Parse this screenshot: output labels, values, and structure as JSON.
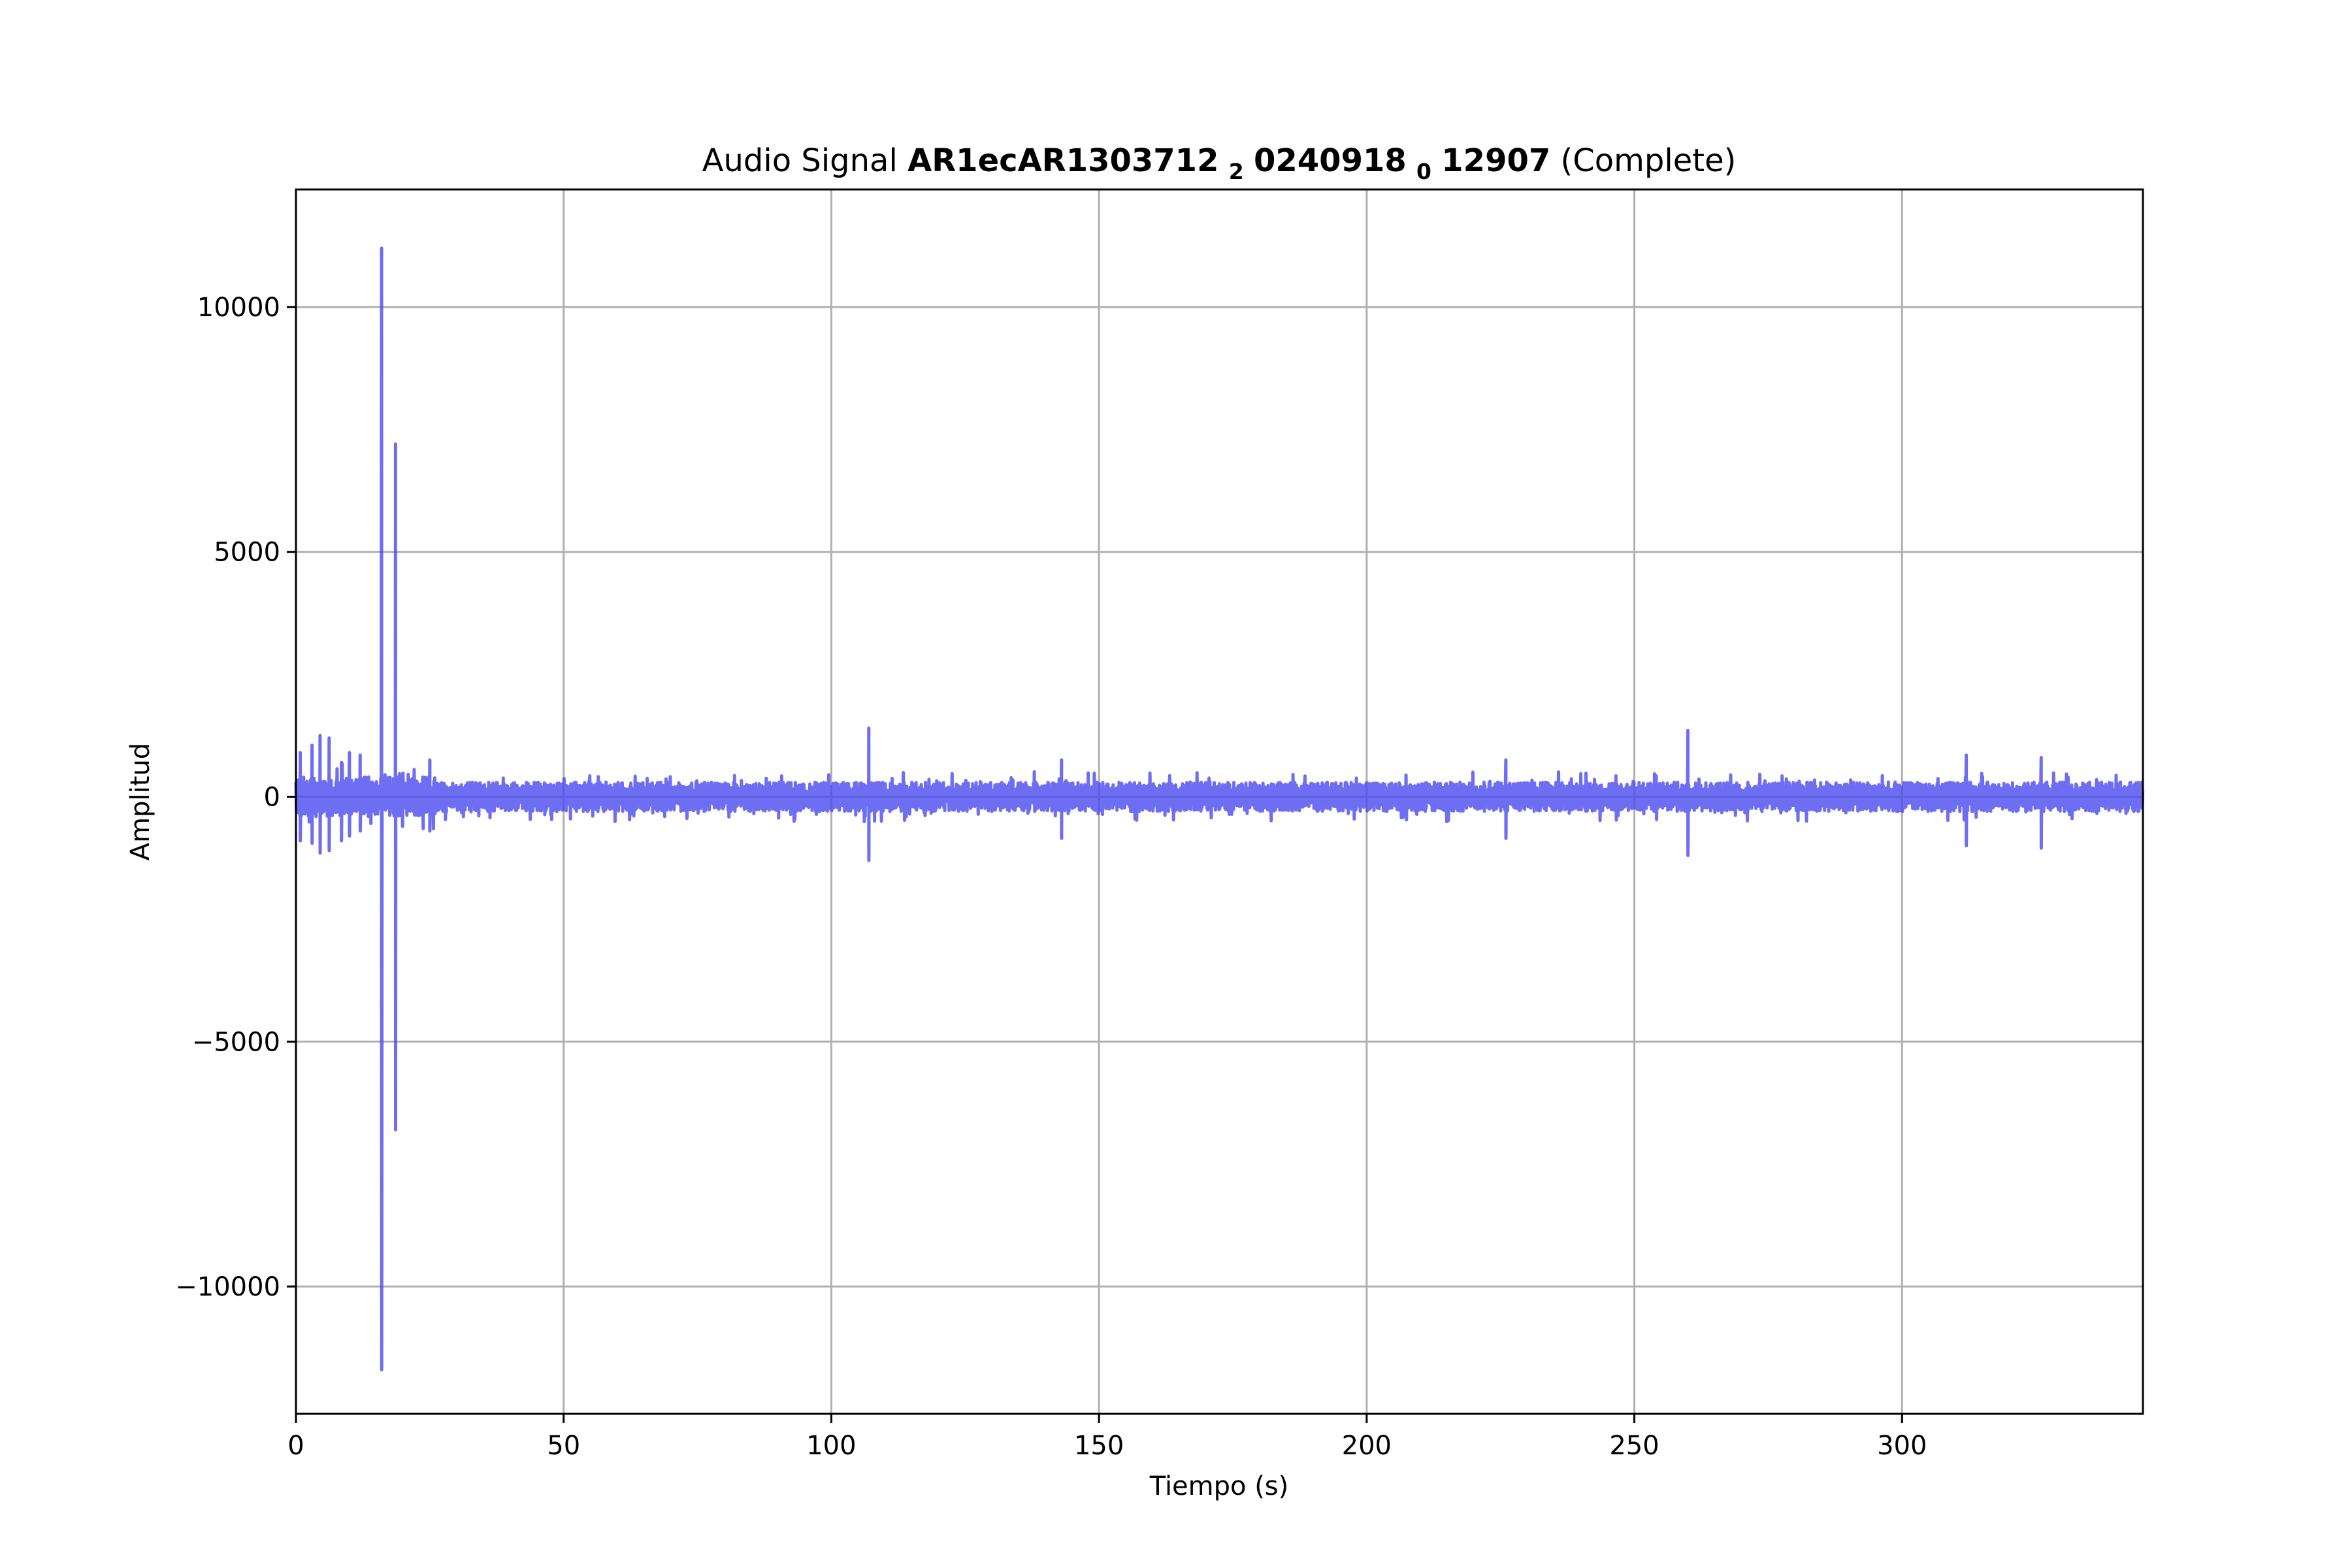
{
  "chart_data": {
    "type": "line",
    "title": {
      "prefix": "Audio Signal ",
      "name_part1": "AR1ecAR1303712",
      "sub1": "2",
      "name_part2": "0240918",
      "sub2": "0",
      "name_part3": "12907",
      "suffix": " (Complete)"
    },
    "xlabel": "Tiempo (s)",
    "ylabel": "Amplitud",
    "xlim": [
      0,
      345
    ],
    "ylim": [
      -12600,
      12400
    ],
    "xticks": [
      0,
      50,
      100,
      150,
      200,
      250,
      300
    ],
    "yticks": [
      -10000,
      -5000,
      0,
      5000,
      10000
    ],
    "xtick_labels": [
      "0",
      "50",
      "100",
      "150",
      "200",
      "250",
      "300"
    ],
    "ytick_labels": [
      "−10000",
      "−5000",
      "0",
      "5000",
      "10000"
    ],
    "grid": true,
    "series": [
      {
        "color": "#4a4af0",
        "baseline_amplitude": 300,
        "spikes": [
          {
            "t": 0.8,
            "max": 900,
            "min": -900
          },
          {
            "t": 3.0,
            "max": 1050,
            "min": -950
          },
          {
            "t": 4.5,
            "max": 1250,
            "min": -1150
          },
          {
            "t": 6.2,
            "max": 1200,
            "min": -1100
          },
          {
            "t": 8.5,
            "max": 700,
            "min": -900
          },
          {
            "t": 10.0,
            "max": 900,
            "min": -800
          },
          {
            "t": 12.0,
            "max": 850,
            "min": -700
          },
          {
            "t": 16.0,
            "max": 11200,
            "min": -11700
          },
          {
            "t": 18.6,
            "max": 7200,
            "min": -6800
          },
          {
            "t": 25.0,
            "max": 750,
            "min": -700
          },
          {
            "t": 107.0,
            "max": 1400,
            "min": -1300
          },
          {
            "t": 143.0,
            "max": 750,
            "min": -850
          },
          {
            "t": 226.0,
            "max": 750,
            "min": -850
          },
          {
            "t": 260.0,
            "max": 1350,
            "min": -1200
          },
          {
            "t": 312.0,
            "max": 850,
            "min": -1000
          },
          {
            "t": 326.0,
            "max": 800,
            "min": -1050
          }
        ]
      }
    ]
  }
}
